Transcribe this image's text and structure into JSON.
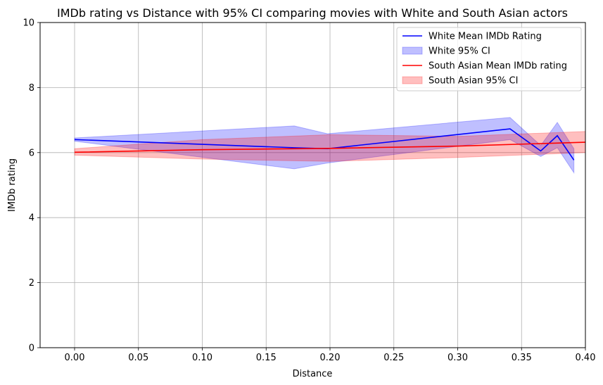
{
  "chart_data": {
    "type": "line",
    "title": "IMDb rating vs Distance with 95% CI comparing movies with White and South Asian actors",
    "xlabel": "Distance",
    "ylabel": "IMDb rating",
    "xlim": [
      -0.027,
      0.4
    ],
    "ylim": [
      0,
      10
    ],
    "xticks": [
      0.0,
      0.05,
      0.1,
      0.15,
      0.2,
      0.25,
      0.3,
      0.35,
      0.4
    ],
    "xtick_labels": [
      "0.00",
      "0.05",
      "0.10",
      "0.15",
      "0.20",
      "0.25",
      "0.30",
      "0.35",
      "0.40"
    ],
    "yticks": [
      0,
      2,
      4,
      6,
      8,
      10
    ],
    "ytick_labels": [
      "0",
      "2",
      "4",
      "6",
      "8",
      "10"
    ],
    "grid": true,
    "legend_position": "top-right",
    "series": [
      {
        "name": "White Mean IMDb Rating",
        "ci_name": "White 95% CI",
        "color": "#0000ff",
        "x": [
          0.0,
          0.172,
          0.198,
          0.341,
          0.365,
          0.378,
          0.391
        ],
        "y": [
          6.4,
          6.15,
          6.12,
          6.73,
          6.05,
          6.52,
          5.77
        ],
        "lower": [
          6.35,
          5.5,
          5.68,
          6.4,
          5.88,
          6.15,
          5.38
        ],
        "upper": [
          6.45,
          6.82,
          6.58,
          7.08,
          6.22,
          6.93,
          6.12
        ]
      },
      {
        "name": "South Asian Mean IMDb rating",
        "ci_name": "South Asian 95% CI",
        "color": "#ff0000",
        "x": [
          0.0,
          0.1,
          0.2,
          0.3,
          0.4
        ],
        "y": [
          6.01,
          6.09,
          6.13,
          6.2,
          6.32
        ],
        "lower": [
          5.92,
          5.8,
          5.73,
          5.85,
          6.0
        ],
        "upper": [
          6.12,
          6.4,
          6.55,
          6.5,
          6.65
        ]
      }
    ]
  }
}
